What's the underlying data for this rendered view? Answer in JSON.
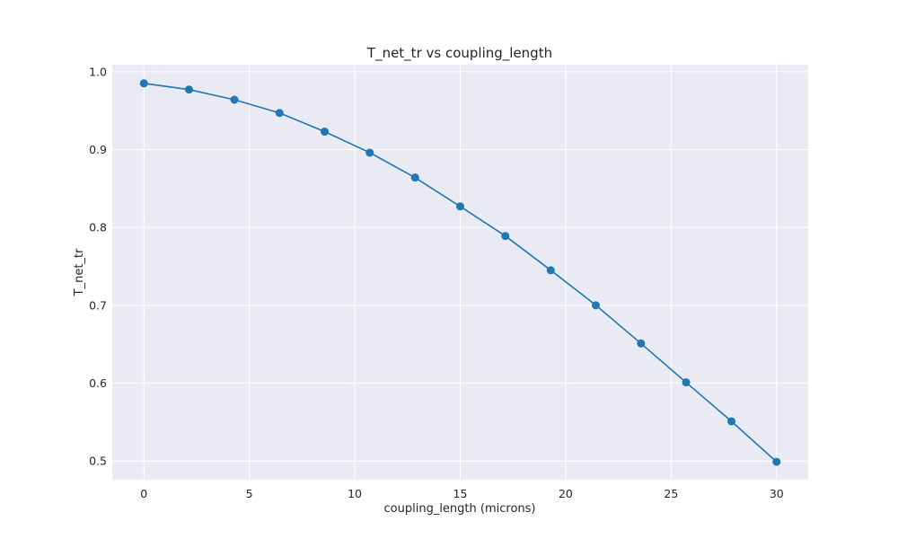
{
  "chart_data": {
    "type": "line",
    "title": "T_net_tr vs coupling_length",
    "xlabel": "coupling_length (microns)",
    "ylabel": "T_net_tr",
    "xlim": [
      -1.5,
      31.5
    ],
    "ylim": [
      0.476,
      1.009
    ],
    "xticks": [
      0,
      5,
      10,
      15,
      20,
      25,
      30
    ],
    "xtick_labels": [
      "0",
      "5",
      "10",
      "15",
      "20",
      "25",
      "30"
    ],
    "yticks": [
      0.5,
      0.6,
      0.7,
      0.8,
      0.9,
      1.0
    ],
    "ytick_labels": [
      "0.5",
      "0.6",
      "0.7",
      "0.8",
      "0.9",
      "1.0"
    ],
    "grid": true,
    "legend": "none",
    "style": {
      "background": "#eaeaf2",
      "grid_color": "#ffffff",
      "line_color": "#1f77b4",
      "marker": "circle"
    },
    "series": [
      {
        "x": [
          0,
          2.14,
          4.29,
          6.43,
          8.57,
          10.71,
          12.86,
          15.0,
          17.14,
          19.29,
          21.43,
          23.57,
          25.71,
          27.86,
          30.0
        ],
        "y": [
          0.985,
          0.977,
          0.964,
          0.947,
          0.923,
          0.896,
          0.864,
          0.827,
          0.789,
          0.745,
          0.7,
          0.651,
          0.601,
          0.551,
          0.499
        ]
      }
    ]
  }
}
